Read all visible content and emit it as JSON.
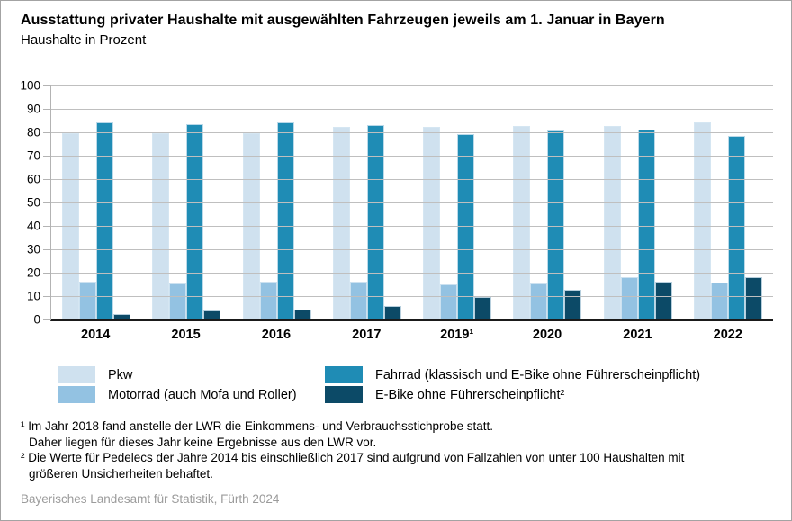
{
  "header": {
    "title": "Ausstattung privater Haushalte mit ausgewählten Fahrzeugen jeweils am 1. Januar in Bayern",
    "subtitle": "Haushalte in Prozent"
  },
  "chart_data": {
    "type": "bar",
    "title": "Ausstattung privater Haushalte mit ausgewählten Fahrzeugen jeweils am 1. Januar in Bayern",
    "subtitle": "Haushalte in Prozent",
    "unit": "Prozent",
    "categories": [
      "2014",
      "2015",
      "2016",
      "2017",
      "2019¹",
      "2020",
      "2021",
      "2022"
    ],
    "series": [
      {
        "name": "Pkw",
        "color": "#cfe1ef",
        "values": [
          79.5,
          79.5,
          79.5,
          82.3,
          82.5,
          82.8,
          82.8,
          84.4
        ]
      },
      {
        "name": "Motorrad (auch Mofa und Roller)",
        "color": "#93c2e2",
        "values": [
          16.2,
          15.3,
          16.0,
          16.3,
          15.0,
          15.5,
          18.1,
          15.6
        ]
      },
      {
        "name": "Fahrrad (klassisch und E-Bike ohne Führerscheinpflicht)",
        "color": "#1f8cb5",
        "values": [
          84.3,
          83.3,
          84.1,
          83.2,
          79.3,
          80.7,
          81.3,
          78.4
        ]
      },
      {
        "name": "E-Bike ohne Führerscheinpflicht²",
        "color": "#0c4a67",
        "values": [
          2.3,
          3.8,
          4.2,
          5.7,
          9.7,
          12.7,
          16.0,
          17.9
        ]
      }
    ],
    "ylim": [
      0,
      100
    ],
    "y_ticks": [
      0,
      10,
      20,
      30,
      40,
      50,
      60,
      70,
      80,
      90,
      100
    ],
    "grid": true,
    "legend_position": "bottom"
  },
  "footnotes": {
    "fn1_line1": "¹ Im Jahr 2018 fand anstelle der LWR die Einkommens- und Verbrauchsstichprobe statt.",
    "fn1_line2": "Daher liegen für dieses Jahr keine Ergebnisse aus den LWR vor.",
    "fn2_line1": "² Die Werte für Pedelecs der Jahre 2014 bis einschließlich 2017 sind aufgrund von Fallzahlen von unter 100 Haushalten mit",
    "fn2_line2": "größeren Unsicherheiten behaftet."
  },
  "source": "Bayerisches Landesamt für Statistik, Fürth 2024",
  "colors": {
    "gridline": "#bfbfbf",
    "axis_line": "#1a1a1a",
    "frame_border": "#a3a3a3",
    "source_text": "#9b9b9b"
  }
}
